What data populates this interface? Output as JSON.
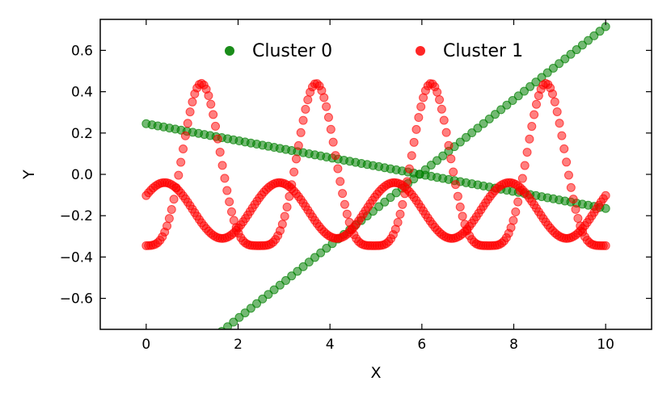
{
  "chart_data": {
    "type": "scatter",
    "title": "",
    "xlabel": "X",
    "ylabel": "Y",
    "xlim": [
      -1,
      11
    ],
    "ylim": [
      -0.75,
      0.75
    ],
    "xticks": [
      0,
      2,
      4,
      6,
      8,
      10
    ],
    "yticks": [
      0.6,
      0.4,
      0.2,
      0.0,
      -0.2,
      -0.4,
      -0.6
    ],
    "xtick_labels": [
      "0",
      "2",
      "4",
      "6",
      "8",
      "10"
    ],
    "ytick_labels": [
      "0.6",
      "0.4",
      "0.2",
      "0.0",
      "−0.2",
      "−0.4",
      "−0.6"
    ],
    "grid": false,
    "legend_position": "top-center",
    "series": [
      {
        "name": "Cluster 0",
        "color": "#008000",
        "opacity": 0.55,
        "points_per_branch": 80,
        "branches": [
          {
            "kind": "linear",
            "x_start": 0,
            "x_end": 10,
            "y_start": 0.245,
            "y_end": -0.165
          },
          {
            "kind": "linear",
            "x_start": 0,
            "x_end": 10,
            "y_start": -1.05,
            "y_end": 0.715
          }
        ]
      },
      {
        "name": "Cluster 1",
        "color": "#ff0000",
        "opacity": 0.5,
        "points_per_branch": 200,
        "branches": [
          {
            "kind": "bump",
            "x_start": 0,
            "x_end": 10,
            "base": -0.345,
            "amp": 0.785,
            "period": 2.5,
            "phase": 1.2,
            "power": 2
          },
          {
            "kind": "sine",
            "x_start": 0,
            "x_end": 10,
            "center": -0.175,
            "amp": 0.135,
            "period": 2.5,
            "phase": 0.4
          }
        ]
      }
    ]
  }
}
